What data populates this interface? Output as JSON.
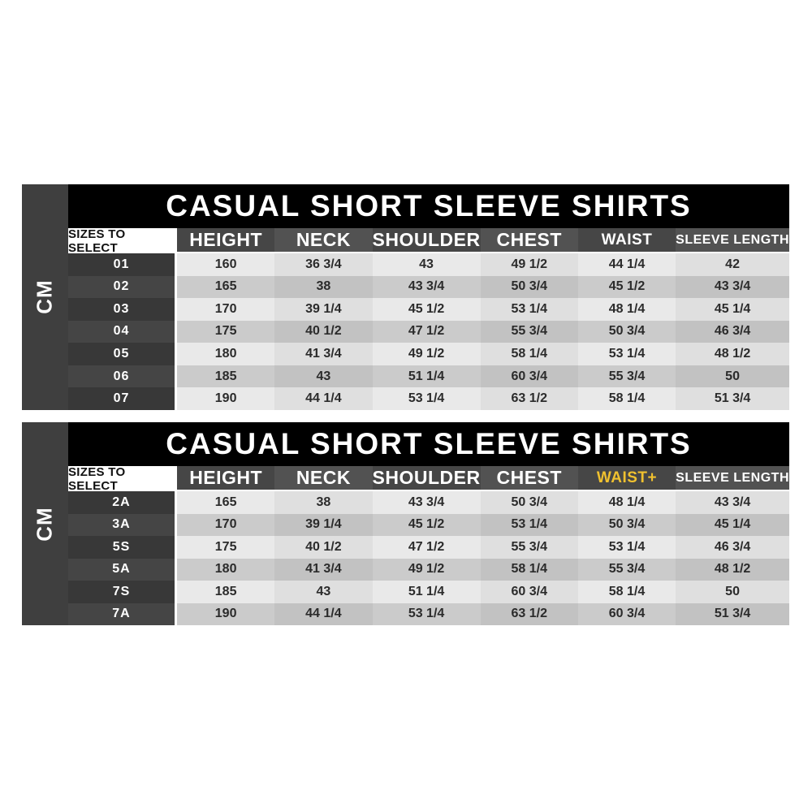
{
  "colors": {
    "page_bg": "#ffffff",
    "title_bg": "#000000",
    "title_text": "#ffffff",
    "cm_strip_bg": "#3f3f3f",
    "header_bg_dark": "#464646",
    "header_bg_light": "#525252",
    "sizes_header_bg": "#ffffff",
    "sizes_header_text": "#111111",
    "size_cell_bg_a": "#383838",
    "size_cell_bg_b": "#454545",
    "row_light_a": "#e9e9e9",
    "row_light_b": "#dfdfdf",
    "row_dark_a": "#cbcbcb",
    "row_dark_b": "#c2c2c2",
    "data_text": "#2b2b2b",
    "highlight": "#f0c12f"
  },
  "chart_data": [
    {
      "type": "table",
      "title": "CASUAL SHORT SLEEVE SHIRTS",
      "unit_label": "CM",
      "size_header": "SIZES TO SELECT",
      "columns": [
        "HEIGHT",
        "NECK",
        "SHOULDER",
        "CHEST",
        "WAIST",
        "SLEEVE LENGTH"
      ],
      "highlight_column_index": null,
      "rows": [
        {
          "size": "01",
          "values": [
            "160",
            "36 3/4",
            "43",
            "49 1/2",
            "44 1/4",
            "42"
          ]
        },
        {
          "size": "02",
          "values": [
            "165",
            "38",
            "43 3/4",
            "50 3/4",
            "45 1/2",
            "43 3/4"
          ]
        },
        {
          "size": "03",
          "values": [
            "170",
            "39 1/4",
            "45 1/2",
            "53 1/4",
            "48 1/4",
            "45 1/4"
          ]
        },
        {
          "size": "04",
          "values": [
            "175",
            "40 1/2",
            "47 1/2",
            "55 3/4",
            "50 3/4",
            "46 3/4"
          ]
        },
        {
          "size": "05",
          "values": [
            "180",
            "41 3/4",
            "49 1/2",
            "58 1/4",
            "53 1/4",
            "48 1/2"
          ]
        },
        {
          "size": "06",
          "values": [
            "185",
            "43",
            "51 1/4",
            "60 3/4",
            "55 3/4",
            "50"
          ]
        },
        {
          "size": "07",
          "values": [
            "190",
            "44 1/4",
            "53 1/4",
            "63 1/2",
            "58 1/4",
            "51 3/4"
          ]
        }
      ]
    },
    {
      "type": "table",
      "title": "CASUAL SHORT SLEEVE SHIRTS",
      "unit_label": "CM",
      "size_header": "SIZES TO SELECT",
      "columns": [
        "HEIGHT",
        "NECK",
        "SHOULDER",
        "CHEST",
        "WAIST+",
        "SLEEVE LENGTH"
      ],
      "highlight_column_index": 4,
      "rows": [
        {
          "size": "2A",
          "values": [
            "165",
            "38",
            "43 3/4",
            "50 3/4",
            "48 1/4",
            "43 3/4"
          ]
        },
        {
          "size": "3A",
          "values": [
            "170",
            "39 1/4",
            "45 1/2",
            "53 1/4",
            "50 3/4",
            "45 1/4"
          ]
        },
        {
          "size": "5S",
          "values": [
            "175",
            "40 1/2",
            "47 1/2",
            "55 3/4",
            "53 1/4",
            "46 3/4"
          ]
        },
        {
          "size": "5A",
          "values": [
            "180",
            "41 3/4",
            "49 1/2",
            "58 1/4",
            "55 3/4",
            "48 1/2"
          ]
        },
        {
          "size": "7S",
          "values": [
            "185",
            "43",
            "51 1/4",
            "60 3/4",
            "58 1/4",
            "50"
          ]
        },
        {
          "size": "7A",
          "values": [
            "190",
            "44 1/4",
            "53 1/4",
            "63 1/2",
            "60 3/4",
            "51 3/4"
          ]
        }
      ]
    }
  ]
}
